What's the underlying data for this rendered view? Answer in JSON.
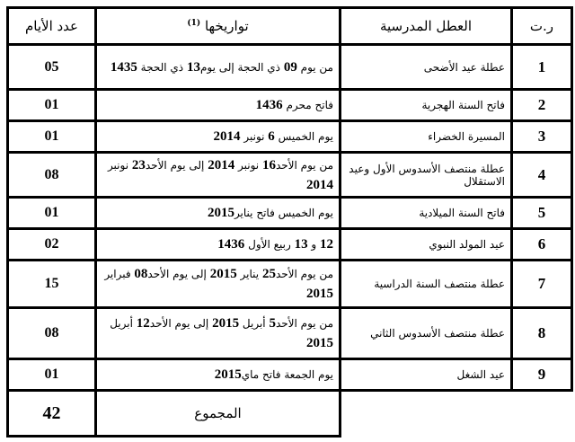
{
  "headers": {
    "number": "ر.ت",
    "holiday": "العطل المدرسية",
    "dates": "تواريخها",
    "dates_footnote": "(1)",
    "days": "عدد الأيام"
  },
  "rows": [
    {
      "number": "1",
      "holiday": "عطلة عيد الأضحى",
      "dates": [
        {
          "t": "من يوم "
        },
        {
          "b": "09"
        },
        {
          "t": " ذي الحجة إلى يوم"
        },
        {
          "b": "13"
        },
        {
          "t": " ذي الحجة "
        },
        {
          "b": "1435"
        }
      ],
      "days": "05",
      "h": 50
    },
    {
      "number": "2",
      "holiday": "فاتح السنة الهجرية",
      "dates": [
        {
          "t": "فاتح محرم "
        },
        {
          "b": "1436"
        }
      ],
      "days": "01",
      "h": 35
    },
    {
      "number": "3",
      "holiday": "المسيرة الخضراء",
      "dates": [
        {
          "t": "يوم الخميس "
        },
        {
          "b": "6"
        },
        {
          "t": " نونبر "
        },
        {
          "b": "2014"
        }
      ],
      "days": "01",
      "h": 35
    },
    {
      "number": "4",
      "holiday": "عطلة منتصف الأسدوس الأول وعيد الاستقلال",
      "dates": [
        {
          "t": "من يوم الأحد"
        },
        {
          "b": "16"
        },
        {
          "t": " نونبر "
        },
        {
          "b": "2014"
        },
        {
          "t": " إلى يوم الأحد"
        },
        {
          "b": "23"
        },
        {
          "t": " نونبر "
        },
        {
          "b": "2014"
        }
      ],
      "days": "08",
      "h": 50
    },
    {
      "number": "5",
      "holiday": "فاتح السنة الميلادية",
      "dates": [
        {
          "t": "يوم الخميس فاتح يناير"
        },
        {
          "b": "2015"
        }
      ],
      "days": "01",
      "h": 35
    },
    {
      "number": "6",
      "holiday": "عيد المولد النبوي",
      "dates": [
        {
          "b": "12"
        },
        {
          "t": " و "
        },
        {
          "b": "13"
        },
        {
          "t": " ربيع الأول "
        },
        {
          "b": "1436"
        }
      ],
      "days": "02",
      "h": 35
    },
    {
      "number": "7",
      "holiday": "عطلة منتصف السنة الدراسية",
      "dates": [
        {
          "t": "من يوم الأحد"
        },
        {
          "b": "25"
        },
        {
          "t": " يناير "
        },
        {
          "b": "2015"
        },
        {
          "t": "  إلى يوم الأحد"
        },
        {
          "b": "08"
        },
        {
          "t": " فبراير "
        },
        {
          "b": "2015"
        }
      ],
      "days": "15",
      "h": 53
    },
    {
      "number": "8",
      "holiday": "عطلة منتصف الأسدوس الثاني",
      "dates": [
        {
          "t": "من يوم الأحد"
        },
        {
          "b": "5"
        },
        {
          "t": "  أبريل "
        },
        {
          "b": "2015"
        },
        {
          "t": " إلى يوم الأحد"
        },
        {
          "b": "12"
        },
        {
          "t": " أبريل "
        },
        {
          "b": "2015"
        }
      ],
      "days": "08",
      "h": 57
    },
    {
      "number": "9",
      "holiday": "عيد الشغل",
      "dates": [
        {
          "t": "يوم الجمعة فاتح ماي"
        },
        {
          "b": "2015"
        }
      ],
      "days": "01",
      "h": 35
    }
  ],
  "total": {
    "label": "المجموع",
    "value": "42"
  }
}
